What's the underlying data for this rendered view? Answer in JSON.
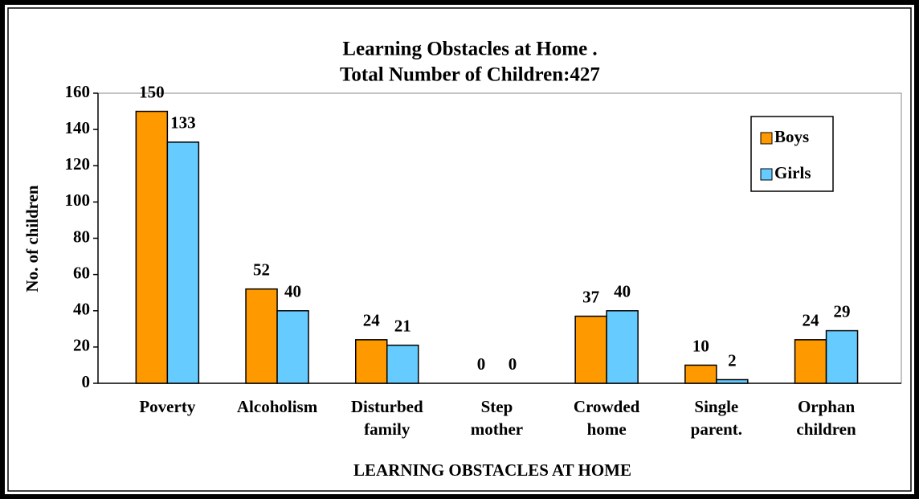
{
  "chart_data": {
    "type": "bar",
    "title": "Learning Obstacles at  Home .",
    "subtitle": "Total  Number of Children:427",
    "x_label": "LEARNING OBSTACLES  AT  HOME",
    "y_label": "No. of children",
    "categories": [
      "Poverty",
      "Alcoholism",
      "Disturbed\nfamily",
      "Step\nmother",
      "Crowded\nhome",
      "Single\nparent.",
      "Orphan\nchildren"
    ],
    "series": [
      {
        "name": "Boys",
        "color": "#ff9900",
        "values": [
          150,
          52,
          24,
          0,
          37,
          10,
          24
        ]
      },
      {
        "name": "Girls",
        "color": "#66ccff",
        "values": [
          133,
          40,
          21,
          0,
          40,
          2,
          29
        ]
      }
    ],
    "ylim": [
      0,
      160
    ],
    "yticks": [
      0,
      20,
      40,
      60,
      80,
      100,
      120,
      140,
      160
    ],
    "grid": false,
    "legend": "upper right"
  }
}
